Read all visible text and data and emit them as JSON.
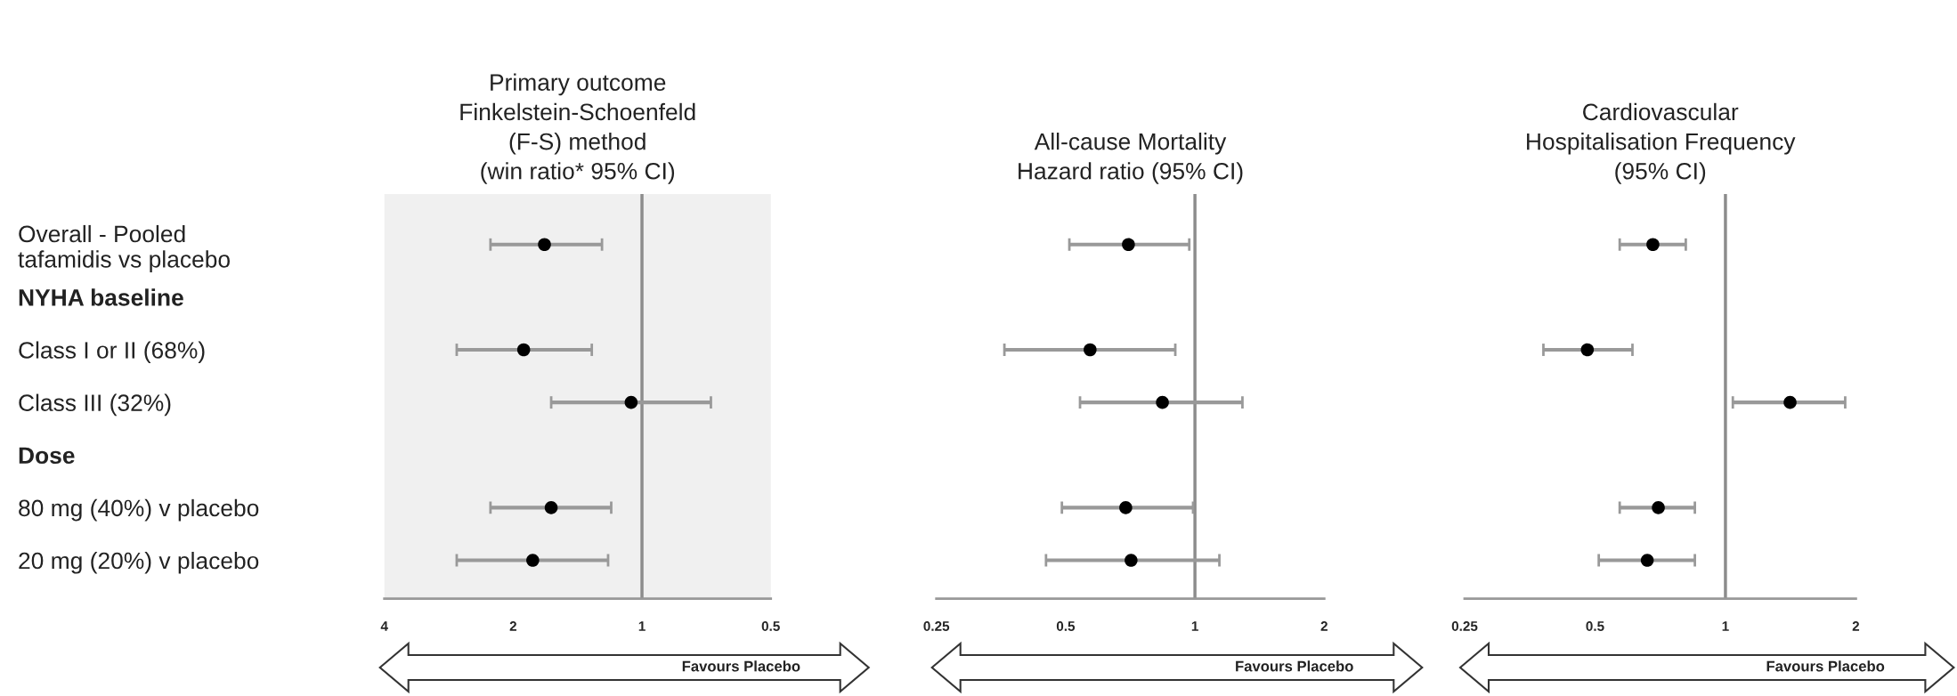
{
  "chart_data": [
    {
      "type": "scatter",
      "orientation": "horizontal",
      "title": "Primary outcome\nFinkelstein-Schoenfeld\n(F-S) method\n(win ratio* 95% CI)",
      "categories": [
        "Overall - Pooled tafamidis vs placebo",
        "NYHA baseline",
        "Class I or II (68%)",
        "Class III (32%)",
        "Dose",
        "80 mg (40%) v placebo",
        "20 mg (20%) v placebo"
      ],
      "series": [
        {
          "color": "#000000",
          "values": [
            1.69,
            null,
            1.89,
            1.06,
            null,
            1.63,
            1.8
          ],
          "errors": [
            [
              1.24,
              2.26
            ],
            null,
            [
              1.31,
              2.71
            ],
            [
              0.69,
              1.63
            ],
            null,
            [
              1.18,
              2.26
            ],
            [
              1.2,
              2.71
            ]
          ]
        }
      ],
      "log": "x",
      "xlim": [
        4,
        0.5
      ],
      "xticks": [
        4,
        2,
        1,
        0.5
      ],
      "ref_lines": [
        {
          "axis": "x",
          "value": 1,
          "color": "#8c8c8c"
        }
      ],
      "marker": "circle",
      "annotations": [
        "Favours Placebo"
      ]
    },
    {
      "type": "scatter",
      "orientation": "horizontal",
      "title": "All-cause Mortality\nHazard ratio (95% CI)",
      "series": [
        {
          "color": "#000000",
          "values": [
            0.7,
            null,
            0.57,
            0.84,
            null,
            0.69,
            0.71
          ],
          "errors": [
            [
              0.51,
              0.97
            ],
            null,
            [
              0.36,
              0.9
            ],
            [
              0.54,
              1.29
            ],
            null,
            [
              0.49,
              0.99
            ],
            [
              0.45,
              1.14
            ]
          ]
        }
      ],
      "log": "x",
      "xlim": [
        0.25,
        2
      ],
      "xticks": [
        0.25,
        0.5,
        1,
        2
      ],
      "ref_lines": [
        {
          "axis": "x",
          "value": 1,
          "color": "#8c8c8c"
        }
      ],
      "marker": "circle",
      "tick_labels": "x",
      "annotations": [
        "Favours Placebo"
      ]
    },
    {
      "type": "scatter",
      "orientation": "horizontal",
      "title": "Cardiovascular\nHospitalisation Frequency\n(95% CI)",
      "series": [
        {
          "color": "#000000",
          "values": [
            0.68,
            null,
            0.48,
            1.41,
            null,
            0.7,
            0.66
          ],
          "errors": [
            [
              0.57,
              0.81
            ],
            null,
            [
              0.38,
              0.61
            ],
            [
              1.04,
              1.89
            ],
            null,
            [
              0.57,
              0.85
            ],
            [
              0.51,
              0.85
            ]
          ]
        }
      ],
      "log": "x",
      "xlim": [
        0.25,
        2
      ],
      "xticks": [
        0.25,
        0.5,
        1,
        2
      ],
      "ref_lines": [
        {
          "axis": "x",
          "value": 1,
          "color": "#8c8c8c"
        }
      ],
      "marker": "circle",
      "tick_labels": "x",
      "annotations": [
        "Favours Placebo"
      ]
    }
  ]
}
